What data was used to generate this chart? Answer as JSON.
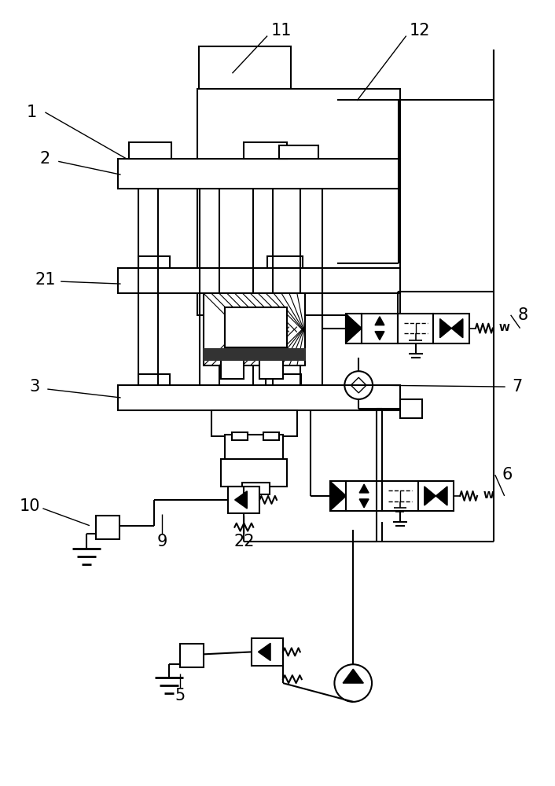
{
  "bg_color": "#ffffff",
  "lc": "#000000",
  "lw": 1.5,
  "fig_w": 7.06,
  "fig_h": 10.0,
  "dpi": 100,
  "label_fs": 15
}
